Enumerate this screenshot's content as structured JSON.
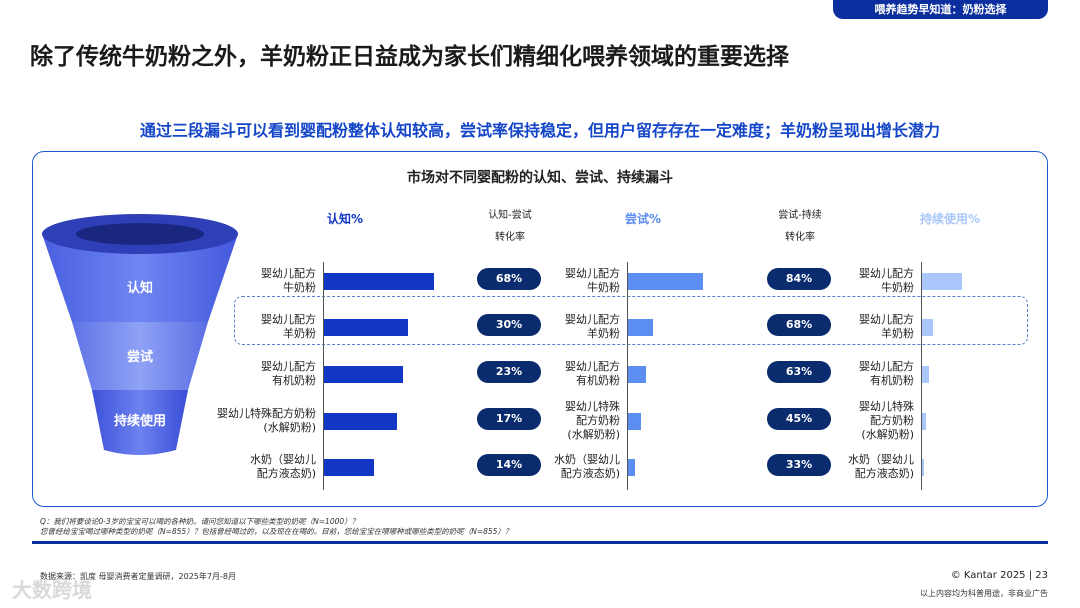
{
  "header": {
    "tag": "喂养趋势早知道：奶粉选择",
    "title": "除了传统牛奶粉之外，羊奶粉正日益成为家长们精细化喂养领域的重要选择",
    "subtitle": "通过三段漏斗可以看到婴配粉整体认知较高，尝试率保持稳定，但用户留存存在一定难度；羊奶粉呈现出增长潜力"
  },
  "funnel": {
    "stages": [
      "认知",
      "尝试",
      "持续使用"
    ]
  },
  "chart_data": {
    "type": "bar",
    "title": "市场对不同婴配粉的认知、尝试、持续漏斗",
    "categories": [
      "婴幼儿配方\n牛奶粉",
      "婴幼儿配方\n羊奶粉",
      "婴幼儿配方\n有机奶粉",
      "婴幼儿特殊配方奶粉\n(水解奶粉)",
      "水奶（婴幼儿\n配方液态奶)"
    ],
    "categories_col2": [
      "婴幼儿配方\n牛奶粉",
      "婴幼儿配方\n羊奶粉",
      "婴幼儿配方\n有机奶粉",
      "婴幼儿特殊\n配方奶粉\n(水解奶粉)",
      "水奶（婴幼儿\n配方液态奶)"
    ],
    "categories_col3": [
      "婴幼儿配方\n牛奶粉",
      "婴幼儿配方\n羊奶粉",
      "婴幼儿配方\n有机奶粉",
      "婴幼儿特殊\n配方奶粉\n(水解奶粉)",
      "水奶（婴幼儿\n配方液态奶)"
    ],
    "series": [
      {
        "name": "认知%",
        "values": [
          88,
          67,
          63,
          58,
          40
        ],
        "color": "#1237c4"
      },
      {
        "name": "尝试%",
        "values": [
          60,
          20,
          14,
          10,
          6
        ],
        "color": "#5b8ef0"
      },
      {
        "name": "持续使用%",
        "values": [
          50,
          14,
          9,
          5,
          2
        ],
        "color": "#a9c7fa"
      }
    ],
    "conversions": [
      {
        "label": "认知-尝试\n转化率",
        "values": [
          "68%",
          "30%",
          "23%",
          "17%",
          "14%"
        ]
      },
      {
        "label": "尝试-持续\n转化率",
        "values": [
          "84%",
          "68%",
          "63%",
          "45%",
          "33%"
        ]
      }
    ],
    "highlighted_category": "婴幼儿配方\n羊奶粉"
  },
  "notes": {
    "q1": "Q：我们将要谈论0-3岁的宝宝可以喝的各种奶。请问您知道以下哪些类型的奶呢（N=1000）？",
    "q2": "您曾经给宝宝喝过哪种类型的奶呢（N=855）？包括曾经喝过的，以及现在在喝的。目前，您给宝宝在喂哪种或哪些类型的奶呢（N=855）？"
  },
  "footer": {
    "source": "数据来源：凯度 母婴消费者定量调研，2025年7月-8月",
    "copyright": "© Kantar 2025 | 23",
    "disclaimer": "以上内容均为科普用途，非商业广告",
    "watermark": "大数跨境"
  }
}
